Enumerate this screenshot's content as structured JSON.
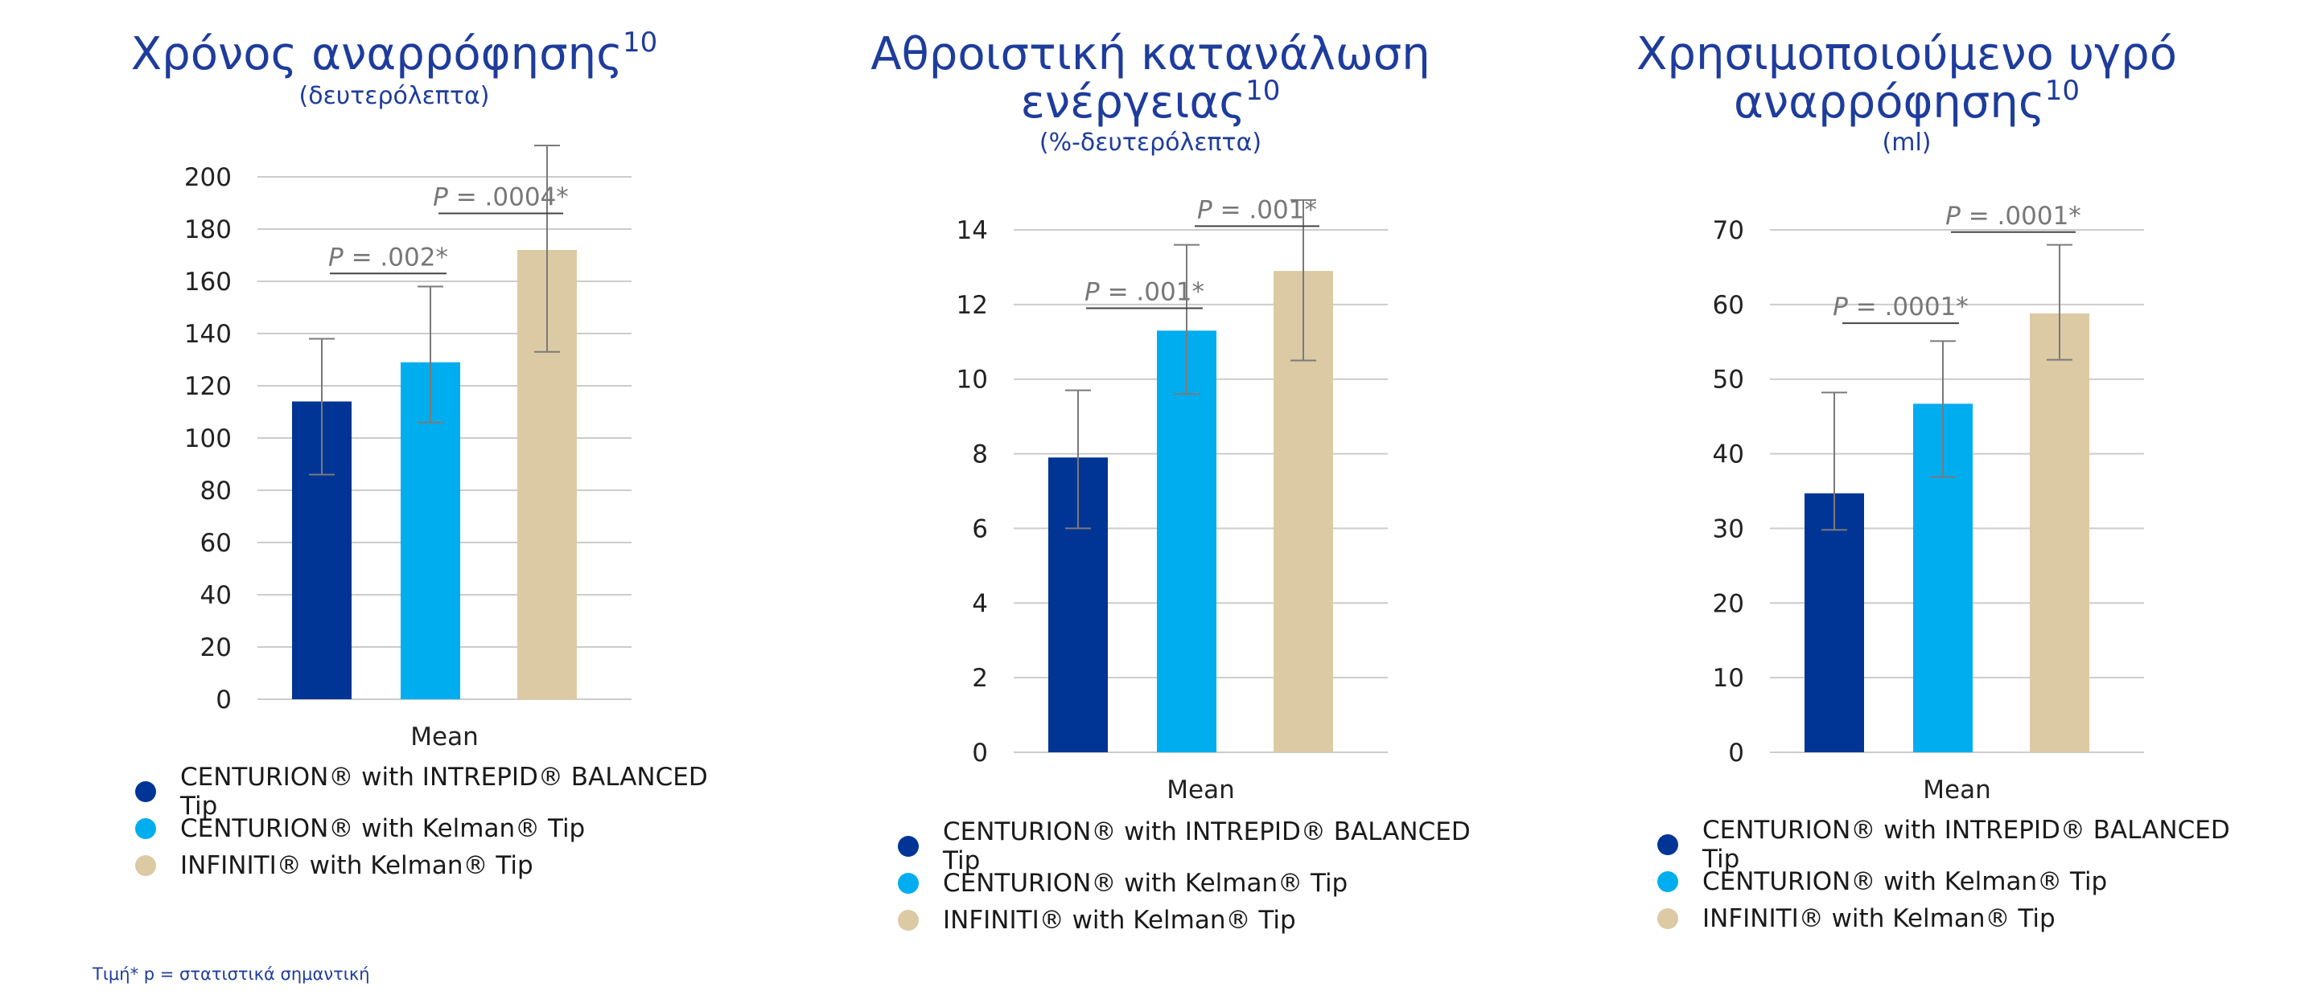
{
  "colors": {
    "series": [
      "#003595",
      "#00adef",
      "#dccaa5"
    ],
    "title": "#1e3c9c",
    "grid": "#cccccc",
    "axis_text": "#222222",
    "annotation": "#777777",
    "errorbar": "#7a7a7a"
  },
  "footnote": "Τιμή* p = στατιστικά σημαντική",
  "chart_data": [
    {
      "type": "bar",
      "title_lines": [
        "Χρόνος αναρρόφησης"
      ],
      "title_sup": "10",
      "unit": "(δευτερόλεπτα)",
      "categories": [
        "Mean"
      ],
      "xlabel": "Mean",
      "ylim": [
        0,
        200
      ],
      "yticks": [
        0,
        20,
        40,
        60,
        80,
        100,
        120,
        140,
        160,
        180,
        200
      ],
      "grid": true,
      "legend_placement": "bottom",
      "series": [
        {
          "name": "CENTURION® with INTREPID® BALANCED Tip",
          "values": [
            114
          ],
          "error": [
            86,
            138
          ]
        },
        {
          "name": "CENTURION® with Kelman® Tip",
          "values": [
            129
          ],
          "error": [
            106,
            158
          ]
        },
        {
          "name": "INFINITI® with Kelman® Tip",
          "values": [
            172
          ],
          "error": [
            133,
            212
          ]
        }
      ],
      "annotations": [
        {
          "from_bar": 0,
          "to_bar": 1,
          "y": 163,
          "p_prefix": "P",
          "p_text": " = .002*"
        },
        {
          "from_bar": 1,
          "to_bar": 2,
          "y": 186,
          "p_prefix": "P",
          "p_text": " = .0004*"
        }
      ]
    },
    {
      "type": "bar",
      "title_lines": [
        "Αθροιστική κατανάλωση",
        "ενέργειας"
      ],
      "title_sup": "10",
      "unit": "(%-δευτερόλεπτα)",
      "categories": [
        "Mean"
      ],
      "xlabel": "Mean",
      "ylim": [
        0,
        14
      ],
      "yticks": [
        0,
        2,
        4,
        6,
        8,
        10,
        12,
        14
      ],
      "grid": true,
      "legend_placement": "bottom",
      "series": [
        {
          "name": "CENTURION® with INTREPID® BALANCED Tip",
          "values": [
            7.9
          ],
          "error": [
            6.0,
            9.7
          ]
        },
        {
          "name": "CENTURION® with Kelman® Tip",
          "values": [
            11.3
          ],
          "error": [
            9.6,
            13.6
          ]
        },
        {
          "name": "INFINITI® with Kelman® Tip",
          "values": [
            12.9
          ],
          "error": [
            10.5,
            14.8
          ]
        }
      ],
      "annotations": [
        {
          "from_bar": 0,
          "to_bar": 1,
          "y": 11.9,
          "p_prefix": "P",
          "p_text": " = .001*"
        },
        {
          "from_bar": 1,
          "to_bar": 2,
          "y": 14.1,
          "p_prefix": "P",
          "p_text": " = .001*"
        }
      ]
    },
    {
      "type": "bar",
      "title_lines": [
        "Χρησιμοποιούμενο υγρό",
        "αναρρόφησης"
      ],
      "title_sup": "10",
      "unit": "(ml)",
      "categories": [
        "Mean"
      ],
      "xlabel": "Mean",
      "ylim": [
        0,
        70
      ],
      "yticks": [
        0,
        10,
        20,
        30,
        40,
        50,
        60,
        70
      ],
      "grid": true,
      "legend_placement": "bottom",
      "series": [
        {
          "name": "CENTURION® with INTREPID® BALANCED Tip",
          "values": [
            34.7
          ],
          "error": [
            29.8,
            48.2
          ]
        },
        {
          "name": "CENTURION® with Kelman® Tip",
          "values": [
            46.7
          ],
          "error": [
            36.9,
            55.1
          ]
        },
        {
          "name": "INFINITI® with Kelman® Tip",
          "values": [
            58.8
          ],
          "error": [
            52.6,
            68.0
          ]
        }
      ],
      "annotations": [
        {
          "from_bar": 0,
          "to_bar": 1,
          "y": 57.5,
          "p_prefix": "P",
          "p_text": " = .0001*"
        },
        {
          "from_bar": 1,
          "to_bar": 2,
          "y": 69.7,
          "p_prefix": "P",
          "p_text": " = .0001*"
        }
      ]
    }
  ]
}
